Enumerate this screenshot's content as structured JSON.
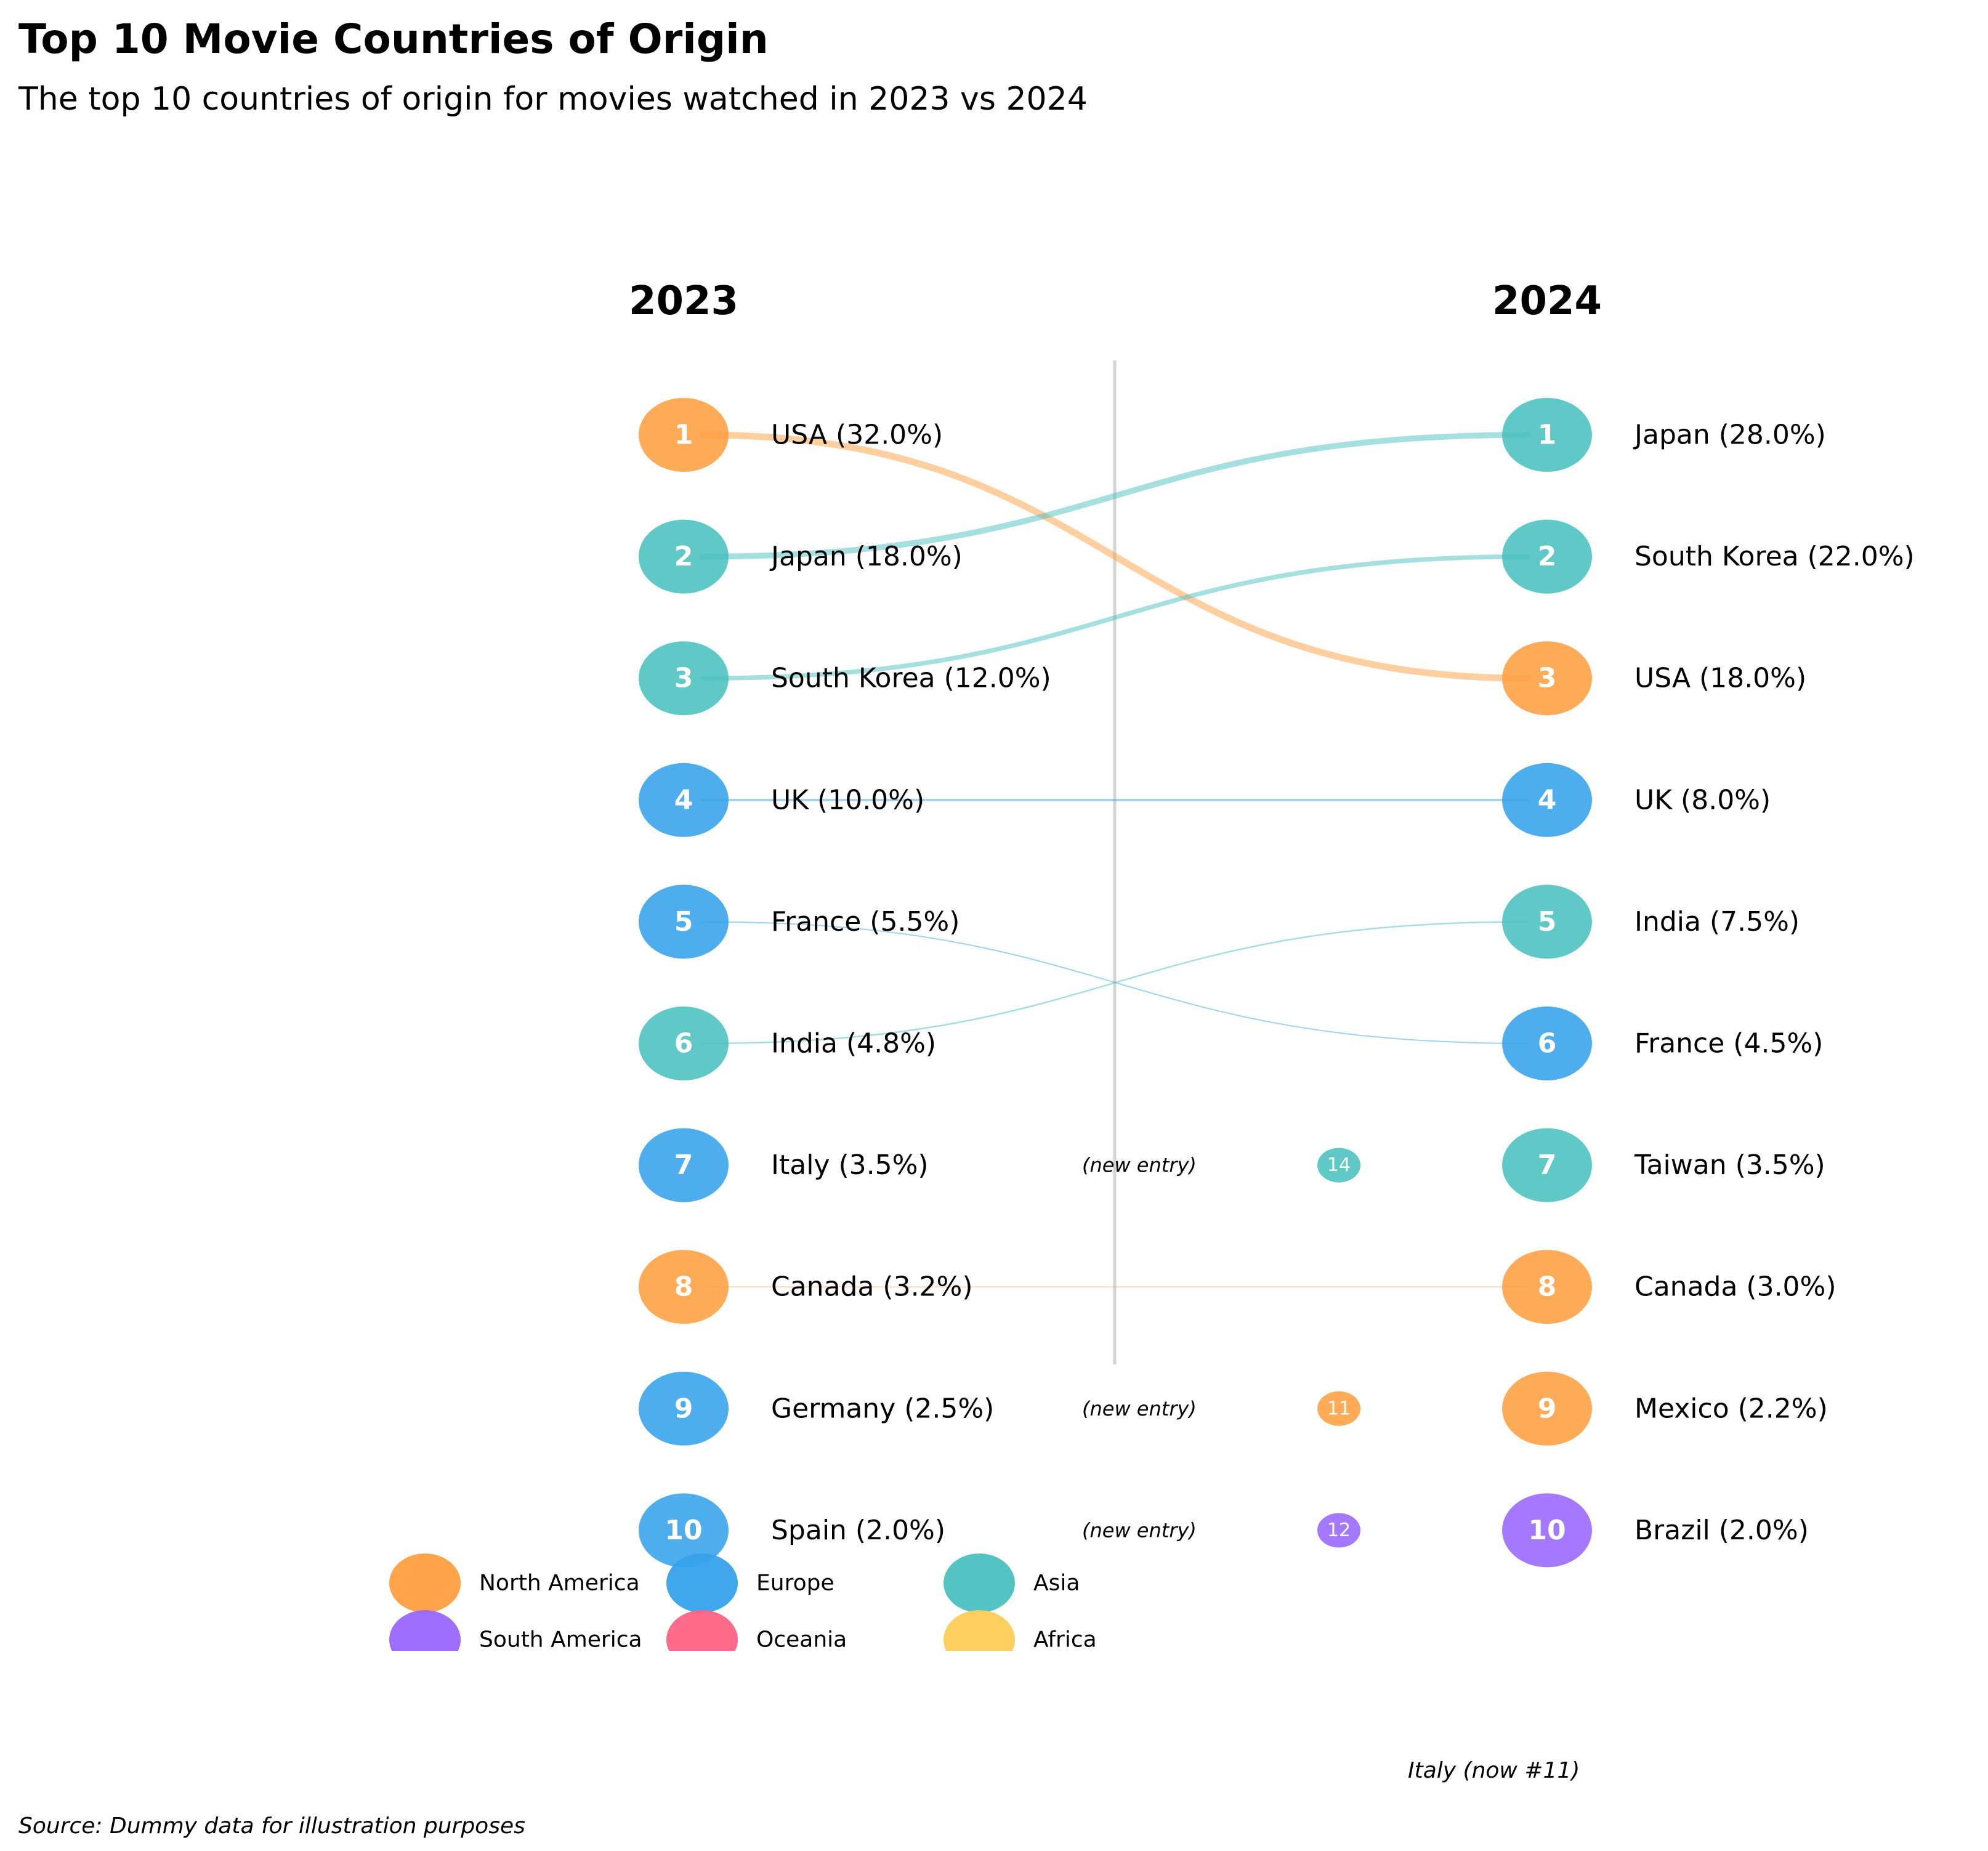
{
  "title": "Top 10 Movie Countries of Origin",
  "subtitle": "The top 10 countries of origin for movies watched in 2023 vs 2024",
  "source": "Source: Dummy data for illustration purposes",
  "italy_note": "Italy (now #11)",
  "new_entry_label": "(new entry)",
  "colors": {
    "North America": "#FF9F40",
    "Europe": "#36A2EB",
    "Asia": "#4BC0C0",
    "South America": "#9966FF",
    "Oceania": "#FF6384",
    "Africa": "#FFCD56",
    "divider": "#d3d3d3"
  },
  "chart_data": {
    "type": "slope",
    "years": [
      "2023",
      "2024"
    ],
    "rankings_2023": [
      {
        "rank": 1,
        "country": "USA",
        "share": 32.0,
        "region": "North America",
        "label": "USA (32.0%)"
      },
      {
        "rank": 2,
        "country": "Japan",
        "share": 18.0,
        "region": "Asia",
        "label": "Japan (18.0%)"
      },
      {
        "rank": 3,
        "country": "South Korea",
        "share": 12.0,
        "region": "Asia",
        "label": "South Korea (12.0%)"
      },
      {
        "rank": 4,
        "country": "UK",
        "share": 10.0,
        "region": "Europe",
        "label": "UK (10.0%)"
      },
      {
        "rank": 5,
        "country": "France",
        "share": 5.5,
        "region": "Europe",
        "label": "France (5.5%)"
      },
      {
        "rank": 6,
        "country": "India",
        "share": 4.8,
        "region": "Asia",
        "label": "India (4.8%)"
      },
      {
        "rank": 7,
        "country": "Italy",
        "share": 3.5,
        "region": "Europe",
        "label": "Italy (3.5%)"
      },
      {
        "rank": 8,
        "country": "Canada",
        "share": 3.2,
        "region": "North America",
        "label": "Canada (3.2%)"
      },
      {
        "rank": 9,
        "country": "Germany",
        "share": 2.5,
        "region": "Europe",
        "label": "Germany (2.5%)"
      },
      {
        "rank": 10,
        "country": "Spain",
        "share": 2.0,
        "region": "Europe",
        "label": "Spain (2.0%)"
      }
    ],
    "rankings_2024": [
      {
        "rank": 1,
        "country": "Japan",
        "share": 28.0,
        "region": "Asia",
        "label": "Japan (28.0%)"
      },
      {
        "rank": 2,
        "country": "South Korea",
        "share": 22.0,
        "region": "Asia",
        "label": "South Korea (22.0%)"
      },
      {
        "rank": 3,
        "country": "USA",
        "share": 18.0,
        "region": "North America",
        "label": "USA (18.0%)"
      },
      {
        "rank": 4,
        "country": "UK",
        "share": 8.0,
        "region": "Europe",
        "label": "UK (8.0%)"
      },
      {
        "rank": 5,
        "country": "India",
        "share": 7.5,
        "region": "Asia",
        "label": "India (7.5%)"
      },
      {
        "rank": 6,
        "country": "France",
        "share": 4.5,
        "region": "Europe",
        "label": "France (4.5%)"
      },
      {
        "rank": 7,
        "country": "Taiwan",
        "share": 3.5,
        "region": "Asia",
        "label": "Taiwan (3.5%)"
      },
      {
        "rank": 8,
        "country": "Canada",
        "share": 3.0,
        "region": "North America",
        "label": "Canada (3.0%)"
      },
      {
        "rank": 9,
        "country": "Mexico",
        "share": 2.2,
        "region": "North America",
        "label": "Mexico (2.2%)"
      },
      {
        "rank": 10,
        "country": "Brazil",
        "share": 2.0,
        "region": "South America",
        "label": "Brazil (2.0%)"
      }
    ],
    "new_entries": [
      {
        "country": "Taiwan",
        "rank_2024": 7,
        "previous_rank": 14,
        "region": "Asia"
      },
      {
        "country": "Mexico",
        "rank_2024": 9,
        "previous_rank": 11,
        "region": "North America"
      },
      {
        "country": "Brazil",
        "rank_2024": 10,
        "previous_rank": 12,
        "region": "South America"
      }
    ],
    "connections": [
      {
        "country": "USA",
        "from": 1,
        "to": 3,
        "region": "North America"
      },
      {
        "country": "Japan",
        "from": 2,
        "to": 1,
        "region": "Asia"
      },
      {
        "country": "South Korea",
        "from": 3,
        "to": 2,
        "region": "Asia"
      },
      {
        "country": "UK",
        "from": 4,
        "to": 4,
        "region": "Europe"
      },
      {
        "country": "France",
        "from": 5,
        "to": 6,
        "region": "Europe"
      },
      {
        "country": "India",
        "from": 6,
        "to": 5,
        "region": "Asia"
      },
      {
        "country": "Canada",
        "from": 8,
        "to": 8,
        "region": "North America"
      }
    ],
    "legend": {
      "placement": "bottom-left",
      "items": [
        "North America",
        "Europe",
        "Asia",
        "South America",
        "Oceania",
        "Africa"
      ]
    }
  }
}
